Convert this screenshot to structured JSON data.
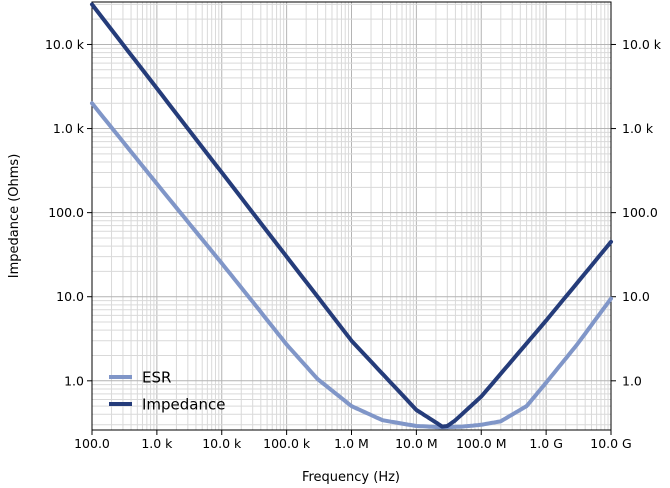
{
  "chart_data": {
    "type": "line",
    "xlabel": "Frequency (Hz)",
    "ylabel": "Impedance (Ohms)",
    "xscale": "log",
    "yscale": "log",
    "xlim": [
      100,
      10000000000
    ],
    "ylim": [
      0.26,
      32000
    ],
    "grid": "major and minor, vertical and horizontal",
    "legend_position": "bottom-left",
    "x_ticks": [
      {
        "value": 100,
        "label": "100.0"
      },
      {
        "value": 1000,
        "label": "1.0 k"
      },
      {
        "value": 10000,
        "label": "10.0 k"
      },
      {
        "value": 100000,
        "label": "100.0 k"
      },
      {
        "value": 1000000,
        "label": "1.0 M"
      },
      {
        "value": 10000000,
        "label": "10.0 M"
      },
      {
        "value": 100000000,
        "label": "100.0 M"
      },
      {
        "value": 1000000000,
        "label": "1.0 G"
      },
      {
        "value": 10000000000,
        "label": "10.0 G"
      }
    ],
    "y_ticks": [
      {
        "value": 1,
        "label": "1.0"
      },
      {
        "value": 10,
        "label": "10.0"
      },
      {
        "value": 100,
        "label": "100.0"
      },
      {
        "value": 1000,
        "label": "1.0 k"
      },
      {
        "value": 10000,
        "label": "10.0 k"
      }
    ],
    "series": [
      {
        "name": "ESR",
        "color": "#8096c8",
        "x": [
          100,
          1000,
          10000,
          30000,
          100000,
          300000,
          1000000,
          3000000,
          10000000,
          25000000,
          50000000,
          100000000,
          200000000,
          500000000,
          1000000000,
          3000000000,
          10000000000
        ],
        "values": [
          2000,
          220,
          25,
          8.7,
          2.7,
          1.05,
          0.5,
          0.34,
          0.29,
          0.28,
          0.285,
          0.3,
          0.33,
          0.5,
          0.95,
          2.7,
          9.5
        ]
      },
      {
        "name": "Impedance",
        "color": "#253c7a",
        "x": [
          100,
          1000,
          10000,
          100000,
          1000000,
          10000000,
          20000000,
          25000000,
          30000000,
          40000000,
          100000000,
          1000000000,
          10000000000
        ],
        "values": [
          30000,
          3000,
          300,
          30,
          3.0,
          0.45,
          0.32,
          0.285,
          0.29,
          0.34,
          0.65,
          5.2,
          45
        ]
      }
    ]
  }
}
